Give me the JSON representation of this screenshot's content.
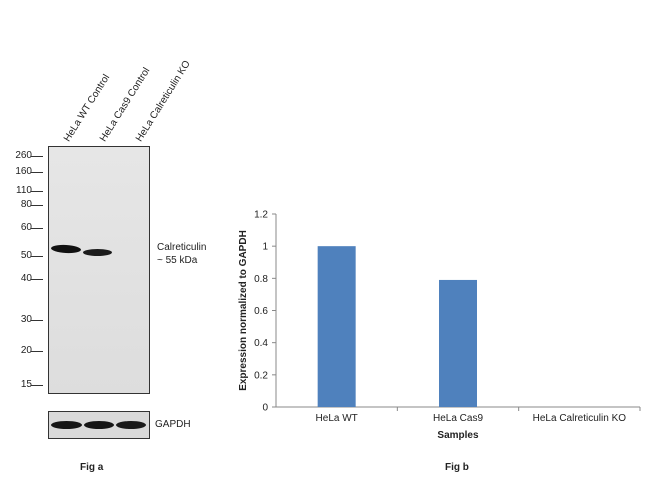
{
  "fig_a": {
    "label": "Fig a",
    "lanes": [
      "HeLa WT Control",
      "HeLa Cas9 Control",
      "HeLa Calreticulin KO"
    ],
    "markers": [
      "260",
      "160",
      "110",
      "80",
      "60",
      "50",
      "40",
      "30",
      "20",
      "15"
    ],
    "target_label_line1": "Calreticulin",
    "target_label_line2": "~ 55 kDa",
    "loading_control": "GAPDH"
  },
  "fig_b": {
    "label": "Fig b"
  },
  "chart_data": {
    "type": "bar",
    "categories": [
      "HeLa WT",
      "HeLa Cas9",
      "HeLa Calreticulin KO"
    ],
    "values": [
      1.0,
      0.79,
      0.0
    ],
    "xlabel": "Samples",
    "ylabel": "Expression  normalized to GAPDH",
    "ylim": [
      0,
      1.2
    ],
    "yticks": [
      "0",
      "0.2",
      "0.4",
      "0.6",
      "0.8",
      "1",
      "1.2"
    ],
    "grid": false,
    "legend": "none",
    "bar_color": "#4f81bd"
  }
}
